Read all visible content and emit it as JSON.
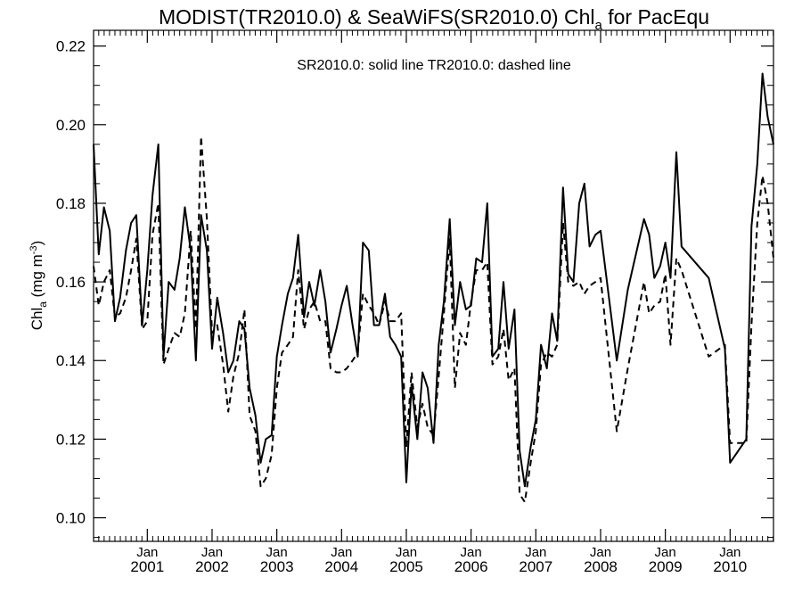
{
  "chart_data": {
    "type": "line",
    "title": {
      "prefix": "MODIST(TR2010.0) & SeaWiFS(SR2010.0)  Chl",
      "subscript": "a",
      "suffix": " for PacEqu"
    },
    "annotation": "SR2010.0: solid line   TR2010.0: dashed line",
    "ylabel": {
      "prefix": "Chl",
      "subscript": "a",
      "unit_prefix": " (mg m",
      "unit_sup": "-3",
      "unit_suffix": ")"
    },
    "ylim": [
      0.094,
      0.224
    ],
    "yticks": [
      "0.10",
      "0.12",
      "0.14",
      "0.16",
      "0.18",
      "0.20",
      "0.22"
    ],
    "xlim": [
      2000.17,
      2010.67
    ],
    "xticks": [
      {
        "month": "Jan",
        "year": "2001"
      },
      {
        "month": "Jan",
        "year": "2002"
      },
      {
        "month": "Jan",
        "year": "2003"
      },
      {
        "month": "Jan",
        "year": "2004"
      },
      {
        "month": "Jan",
        "year": "2005"
      },
      {
        "month": "Jan",
        "year": "2006"
      },
      {
        "month": "Jan",
        "year": "2007"
      },
      {
        "month": "Jan",
        "year": "2008"
      },
      {
        "month": "Jan",
        "year": "2009"
      },
      {
        "month": "Jan",
        "year": "2010"
      }
    ],
    "grid": false,
    "series": [
      {
        "style": "solid",
        "points": [
          [
            2000.17,
            0.195
          ],
          [
            2000.25,
            0.167
          ],
          [
            2000.33,
            0.179
          ],
          [
            2000.42,
            0.173
          ],
          [
            2000.5,
            0.15
          ],
          [
            2000.58,
            0.156
          ],
          [
            2000.67,
            0.168
          ],
          [
            2000.75,
            0.175
          ],
          [
            2000.83,
            0.177
          ],
          [
            2000.92,
            0.149
          ],
          [
            2001.0,
            0.163
          ],
          [
            2001.08,
            0.182
          ],
          [
            2001.17,
            0.195
          ],
          [
            2001.25,
            0.141
          ],
          [
            2001.33,
            0.16
          ],
          [
            2001.42,
            0.158
          ],
          [
            2001.5,
            0.166
          ],
          [
            2001.58,
            0.179
          ],
          [
            2001.67,
            0.168
          ],
          [
            2001.75,
            0.14
          ],
          [
            2001.83,
            0.177
          ],
          [
            2001.92,
            0.168
          ],
          [
            2002.0,
            0.143
          ],
          [
            2002.08,
            0.156
          ],
          [
            2002.17,
            0.147
          ],
          [
            2002.25,
            0.137
          ],
          [
            2002.33,
            0.14
          ],
          [
            2002.42,
            0.15
          ],
          [
            2002.5,
            0.148
          ],
          [
            2002.58,
            0.133
          ],
          [
            2002.67,
            0.126
          ],
          [
            2002.75,
            0.114
          ],
          [
            2002.83,
            0.12
          ],
          [
            2002.92,
            0.121
          ],
          [
            2003.0,
            0.141
          ],
          [
            2003.08,
            0.149
          ],
          [
            2003.17,
            0.157
          ],
          [
            2003.25,
            0.161
          ],
          [
            2003.33,
            0.172
          ],
          [
            2003.42,
            0.151
          ],
          [
            2003.5,
            0.16
          ],
          [
            2003.58,
            0.154
          ],
          [
            2003.67,
            0.163
          ],
          [
            2003.75,
            0.155
          ],
          [
            2003.83,
            0.142
          ],
          [
            2003.92,
            0.148
          ],
          [
            2004.0,
            0.154
          ],
          [
            2004.08,
            0.159
          ],
          [
            2004.17,
            0.149
          ],
          [
            2004.25,
            0.141
          ],
          [
            2004.33,
            0.17
          ],
          [
            2004.42,
            0.168
          ],
          [
            2004.5,
            0.149
          ],
          [
            2004.58,
            0.149
          ],
          [
            2004.67,
            0.157
          ],
          [
            2004.75,
            0.146
          ],
          [
            2004.83,
            0.144
          ],
          [
            2004.92,
            0.141
          ],
          [
            2005.0,
            0.109
          ],
          [
            2005.08,
            0.134
          ],
          [
            2005.17,
            0.12
          ],
          [
            2005.25,
            0.137
          ],
          [
            2005.33,
            0.133
          ],
          [
            2005.42,
            0.119
          ],
          [
            2005.5,
            0.144
          ],
          [
            2005.58,
            0.155
          ],
          [
            2005.67,
            0.176
          ],
          [
            2005.75,
            0.149
          ],
          [
            2005.83,
            0.16
          ],
          [
            2005.92,
            0.153
          ],
          [
            2006.0,
            0.154
          ],
          [
            2006.08,
            0.166
          ],
          [
            2006.17,
            0.165
          ],
          [
            2006.25,
            0.18
          ],
          [
            2006.33,
            0.141
          ],
          [
            2006.42,
            0.143
          ],
          [
            2006.5,
            0.16
          ],
          [
            2006.58,
            0.143
          ],
          [
            2006.67,
            0.153
          ],
          [
            2006.75,
            0.117
          ],
          [
            2006.83,
            0.108
          ],
          [
            2006.92,
            0.118
          ],
          [
            2007.0,
            0.125
          ],
          [
            2007.08,
            0.144
          ],
          [
            2007.17,
            0.138
          ],
          [
            2007.25,
            0.152
          ],
          [
            2007.33,
            0.145
          ],
          [
            2007.42,
            0.184
          ],
          [
            2007.5,
            0.162
          ],
          [
            2007.58,
            0.16
          ],
          [
            2007.67,
            0.18
          ],
          [
            2007.75,
            0.185
          ],
          [
            2007.83,
            0.169
          ],
          [
            2007.92,
            0.172
          ],
          [
            2008.0,
            0.173
          ],
          [
            2008.25,
            0.14
          ],
          [
            2008.42,
            0.158
          ],
          [
            2008.67,
            0.176
          ],
          [
            2008.75,
            0.172
          ],
          [
            2008.83,
            0.161
          ],
          [
            2008.92,
            0.164
          ],
          [
            2009.0,
            0.17
          ],
          [
            2009.08,
            0.161
          ],
          [
            2009.17,
            0.193
          ],
          [
            2009.25,
            0.169
          ],
          [
            2009.67,
            0.161
          ],
          [
            2009.92,
            0.143
          ],
          [
            2010.0,
            0.114
          ],
          [
            2010.25,
            0.12
          ],
          [
            2010.33,
            0.174
          ],
          [
            2010.42,
            0.19
          ],
          [
            2010.5,
            0.213
          ],
          [
            2010.58,
            0.202
          ],
          [
            2010.67,
            0.195
          ]
        ]
      },
      {
        "style": "dashed",
        "points": [
          [
            2000.17,
            0.164
          ],
          [
            2000.25,
            0.154
          ],
          [
            2000.33,
            0.16
          ],
          [
            2000.42,
            0.163
          ],
          [
            2000.5,
            0.151
          ],
          [
            2000.58,
            0.152
          ],
          [
            2000.67,
            0.156
          ],
          [
            2000.75,
            0.163
          ],
          [
            2000.83,
            0.171
          ],
          [
            2000.92,
            0.148
          ],
          [
            2001.0,
            0.15
          ],
          [
            2001.08,
            0.172
          ],
          [
            2001.17,
            0.18
          ],
          [
            2001.25,
            0.139
          ],
          [
            2001.33,
            0.143
          ],
          [
            2001.42,
            0.147
          ],
          [
            2001.5,
            0.146
          ],
          [
            2001.58,
            0.152
          ],
          [
            2001.67,
            0.173
          ],
          [
            2001.75,
            0.148
          ],
          [
            2001.83,
            0.197
          ],
          [
            2001.92,
            0.176
          ],
          [
            2002.0,
            0.147
          ],
          [
            2002.08,
            0.149
          ],
          [
            2002.17,
            0.139
          ],
          [
            2002.25,
            0.127
          ],
          [
            2002.33,
            0.136
          ],
          [
            2002.42,
            0.142
          ],
          [
            2002.5,
            0.153
          ],
          [
            2002.58,
            0.126
          ],
          [
            2002.67,
            0.122
          ],
          [
            2002.75,
            0.108
          ],
          [
            2002.83,
            0.11
          ],
          [
            2002.92,
            0.116
          ],
          [
            2003.0,
            0.133
          ],
          [
            2003.08,
            0.142
          ],
          [
            2003.17,
            0.144
          ],
          [
            2003.25,
            0.146
          ],
          [
            2003.33,
            0.163
          ],
          [
            2003.42,
            0.148
          ],
          [
            2003.5,
            0.153
          ],
          [
            2003.58,
            0.155
          ],
          [
            2003.67,
            0.15
          ],
          [
            2003.75,
            0.15
          ],
          [
            2003.83,
            0.138
          ],
          [
            2003.92,
            0.137
          ],
          [
            2004.0,
            0.137
          ],
          [
            2004.08,
            0.138
          ],
          [
            2004.17,
            0.14
          ],
          [
            2004.25,
            0.142
          ],
          [
            2004.33,
            0.157
          ],
          [
            2004.42,
            0.154
          ],
          [
            2004.5,
            0.152
          ],
          [
            2004.58,
            0.149
          ],
          [
            2004.67,
            0.155
          ],
          [
            2004.75,
            0.15
          ],
          [
            2004.83,
            0.15
          ],
          [
            2004.92,
            0.152
          ],
          [
            2005.0,
            0.118
          ],
          [
            2005.08,
            0.137
          ],
          [
            2005.17,
            0.123
          ],
          [
            2005.25,
            0.129
          ],
          [
            2005.33,
            0.123
          ],
          [
            2005.42,
            0.121
          ],
          [
            2005.5,
            0.136
          ],
          [
            2005.58,
            0.152
          ],
          [
            2005.67,
            0.171
          ],
          [
            2005.75,
            0.133
          ],
          [
            2005.83,
            0.147
          ],
          [
            2005.92,
            0.144
          ],
          [
            2006.0,
            0.155
          ],
          [
            2006.08,
            0.163
          ],
          [
            2006.17,
            0.163
          ],
          [
            2006.25,
            0.165
          ],
          [
            2006.33,
            0.139
          ],
          [
            2006.42,
            0.141
          ],
          [
            2006.5,
            0.148
          ],
          [
            2006.58,
            0.135
          ],
          [
            2006.67,
            0.138
          ],
          [
            2006.75,
            0.106
          ],
          [
            2006.83,
            0.104
          ],
          [
            2006.92,
            0.114
          ],
          [
            2007.0,
            0.122
          ],
          [
            2007.08,
            0.139
          ],
          [
            2007.17,
            0.142
          ],
          [
            2007.25,
            0.141
          ],
          [
            2007.33,
            0.144
          ],
          [
            2007.42,
            0.175
          ],
          [
            2007.5,
            0.16
          ],
          [
            2007.58,
            0.159
          ],
          [
            2007.67,
            0.16
          ],
          [
            2007.75,
            0.157
          ],
          [
            2007.83,
            0.159
          ],
          [
            2007.92,
            0.16
          ],
          [
            2008.0,
            0.161
          ],
          [
            2008.25,
            0.122
          ],
          [
            2008.42,
            0.138
          ],
          [
            2008.67,
            0.16
          ],
          [
            2008.75,
            0.152
          ],
          [
            2008.83,
            0.154
          ],
          [
            2008.92,
            0.155
          ],
          [
            2009.0,
            0.162
          ],
          [
            2009.08,
            0.144
          ],
          [
            2009.17,
            0.166
          ],
          [
            2009.25,
            0.163
          ],
          [
            2009.67,
            0.141
          ],
          [
            2009.92,
            0.144
          ],
          [
            2010.0,
            0.119
          ],
          [
            2010.25,
            0.119
          ],
          [
            2010.33,
            0.149
          ],
          [
            2010.42,
            0.175
          ],
          [
            2010.5,
            0.187
          ],
          [
            2010.58,
            0.18
          ],
          [
            2010.67,
            0.166
          ]
        ]
      }
    ]
  }
}
